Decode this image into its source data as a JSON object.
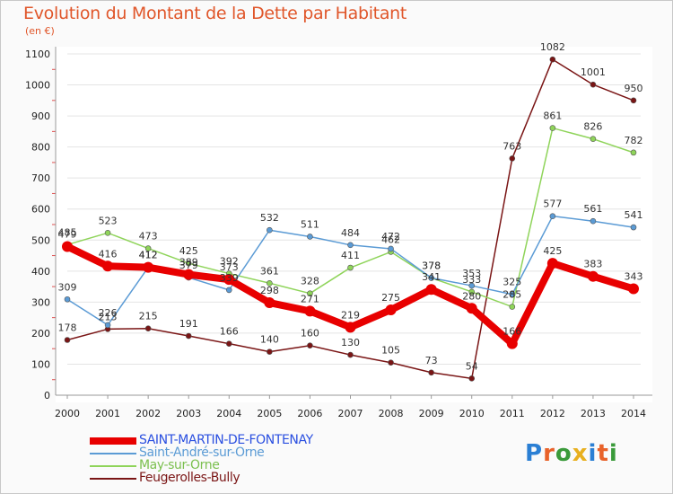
{
  "header": {
    "title": "Evolution du Montant de la Dette par Habitant",
    "unit": "(en €)"
  },
  "logo": {
    "letters": [
      "P",
      "r",
      "o",
      "x",
      "i",
      "t",
      "i"
    ],
    "colors": [
      "#2a7fd4",
      "#e8622a",
      "#3a9a3a",
      "#e8b020",
      "#2a7fd4",
      "#e8622a",
      "#3a9a3a"
    ]
  },
  "chart_data": {
    "type": "line",
    "title": "Evolution du Montant de la Dette par Habitant",
    "ylabel": "(en €)",
    "xlabel": "",
    "x": [
      "2000",
      "2001",
      "2002",
      "2003",
      "2004",
      "2005",
      "2006",
      "2007",
      "2008",
      "2009",
      "2010",
      "2011",
      "2012",
      "2013",
      "2014"
    ],
    "ylim": [
      0,
      1100
    ],
    "yticks": [
      "0",
      "100",
      "200",
      "300",
      "400",
      "500",
      "600",
      "700",
      "800",
      "900",
      "1000",
      "1100"
    ],
    "grid": true,
    "legend_position": "bottom-left",
    "series": [
      {
        "name": "SAINT-MARTIN-DE-FONTENAY",
        "color": "#e80000",
        "text_color": "#2a4fe0",
        "values": [
          479,
          416,
          412,
          389,
          373,
          298,
          271,
          219,
          275,
          341,
          280,
          166,
          425,
          383,
          343
        ],
        "labels": [
          "479",
          "416",
          "412",
          "389",
          "373",
          "298",
          "271",
          "219",
          "275",
          "341",
          "280",
          "166",
          "425",
          "383",
          "343"
        ]
      },
      {
        "name": "Saint-André-sur-Orne",
        "color": "#5b9bd5",
        "text_color": "#5b9bd5",
        "values": [
          309,
          226,
          412,
          379,
          339,
          532,
          511,
          484,
          472,
          378,
          353,
          325,
          577,
          561,
          541
        ],
        "labels": [
          "309",
          "226",
          "412",
          "379",
          "339",
          "532",
          "511",
          "484",
          "472",
          "378",
          "353",
          "325",
          "577",
          "561",
          "541"
        ]
      },
      {
        "name": "May-sur-Orne",
        "color": "#8fd45a",
        "text_color": "#7cc050",
        "values": [
          485,
          523,
          473,
          425,
          392,
          361,
          328,
          411,
          462,
          378,
          333,
          285,
          861,
          826,
          782
        ],
        "labels": [
          "485",
          "523",
          "473",
          "425",
          "392",
          "361",
          "328",
          "411",
          "462",
          "378",
          "333",
          "285",
          "861",
          "826",
          "782"
        ]
      },
      {
        "name": "Feugerolles-Bully",
        "color": "#7a1515",
        "text_color": "#7a1515",
        "values": [
          178,
          213,
          215,
          191,
          166,
          140,
          160,
          130,
          105,
          73,
          54,
          763,
          1082,
          1001,
          950
        ],
        "labels": [
          "178",
          "213",
          "215",
          "191",
          "166",
          "140",
          "160",
          "130",
          "105",
          "73",
          "54",
          "763",
          "1082",
          "1001",
          "950"
        ]
      }
    ]
  }
}
